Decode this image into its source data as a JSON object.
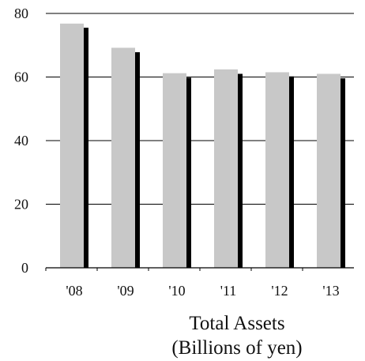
{
  "chart_data": {
    "type": "bar",
    "categories": [
      "'08",
      "'09",
      "'10",
      "'11",
      "'12",
      "'13"
    ],
    "series": [
      {
        "values": [
          76.8,
          69.2,
          61.2,
          62.4,
          61.5,
          61.0
        ]
      },
      {
        "values": [
          75.5,
          67.8,
          59.8,
          61.0,
          60.2,
          59.6
        ]
      }
    ],
    "y_ticks": [
      "0",
      "20",
      "40",
      "60",
      "80"
    ],
    "ylim": [
      0,
      80
    ],
    "grid": true,
    "title": "Total Assets",
    "ylabel": "",
    "xlabel": "",
    "subtitle": "(Billions of yen)",
    "colors": {
      "series_front": "#c8c8c8",
      "series_back": "#000000",
      "grid": "#000000",
      "text": "#111111"
    }
  }
}
